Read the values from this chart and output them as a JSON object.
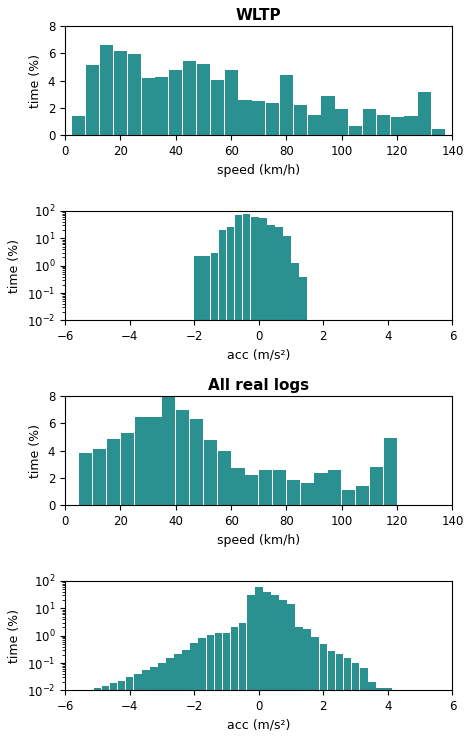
{
  "bar_color": "#2a9090",
  "title1": "WLTP",
  "title2": "All real logs",
  "xlabel_speed": "speed (km/h)",
  "xlabel_acc": "acc (m/s²)",
  "ylabel_time": "time (%)",
  "wltp_speed_bins": [
    5,
    10,
    15,
    20,
    25,
    30,
    35,
    40,
    45,
    50,
    55,
    60,
    65,
    70,
    75,
    80,
    85,
    90,
    95,
    100,
    105,
    110,
    115,
    120,
    125,
    130,
    135
  ],
  "wltp_speed_vals": [
    1.45,
    5.15,
    6.6,
    6.2,
    5.95,
    4.2,
    4.25,
    4.8,
    5.45,
    5.25,
    4.05,
    4.8,
    2.6,
    2.5,
    2.35,
    4.4,
    2.2,
    1.5,
    2.85,
    1.9,
    0.65,
    1.9,
    1.5,
    1.35,
    1.45,
    3.2,
    0.5
  ],
  "wltp_acc_bins": [
    -1.875,
    -1.625,
    -1.375,
    -1.125,
    -0.875,
    -0.625,
    -0.375,
    -0.125,
    0.125,
    0.375,
    0.625,
    0.875,
    1.125,
    1.375,
    1.625,
    1.875
  ],
  "wltp_acc_vals": [
    2.2,
    2.2,
    2.8,
    20.0,
    25.0,
    70.0,
    80.0,
    60.0,
    55.0,
    30.0,
    25.0,
    12.0,
    1.3,
    0.4,
    0.0,
    0.0
  ],
  "real_speed_bins": [
    7.5,
    12.5,
    17.5,
    22.5,
    27.5,
    32.5,
    37.5,
    42.5,
    47.5,
    52.5,
    57.5,
    62.5,
    67.5,
    72.5,
    77.5,
    82.5,
    87.5,
    92.5,
    97.5,
    102.5,
    107.5,
    112.5,
    117.5
  ],
  "real_speed_vals": [
    3.85,
    4.1,
    4.85,
    5.3,
    6.45,
    6.45,
    7.9,
    6.95,
    6.3,
    4.8,
    4.0,
    2.7,
    2.25,
    2.55,
    2.55,
    1.85,
    1.65,
    2.4,
    2.6,
    1.1,
    1.4,
    2.8,
    4.9
  ],
  "real_acc_bins": [
    -5.75,
    -5.5,
    -5.25,
    -5.0,
    -4.75,
    -4.5,
    -4.25,
    -4.0,
    -3.75,
    -3.5,
    -3.25,
    -3.0,
    -2.75,
    -2.5,
    -2.25,
    -2.0,
    -1.75,
    -1.5,
    -1.25,
    -1.0,
    -0.75,
    -0.5,
    -0.25,
    0.0,
    0.25,
    0.5,
    0.75,
    1.0,
    1.25,
    1.5,
    1.75,
    2.0,
    2.25,
    2.5,
    2.75,
    3.0,
    3.25,
    3.5,
    3.75,
    4.0,
    4.25,
    4.5,
    4.75,
    5.0,
    5.25,
    5.5,
    5.75
  ],
  "real_acc_vals": [
    0.004,
    0.006,
    0.008,
    0.012,
    0.015,
    0.018,
    0.022,
    0.032,
    0.04,
    0.055,
    0.07,
    0.1,
    0.15,
    0.22,
    0.3,
    0.55,
    0.8,
    1.1,
    1.2,
    1.2,
    2.0,
    3.0,
    30.0,
    60.0,
    40.0,
    30.0,
    20.0,
    14.0,
    2.0,
    1.7,
    0.9,
    0.5,
    0.28,
    0.22,
    0.15,
    0.1,
    0.065,
    0.02,
    0.012,
    0.012,
    0.01,
    0.009,
    0.009,
    0.008,
    0.007,
    0.006,
    0.005
  ]
}
